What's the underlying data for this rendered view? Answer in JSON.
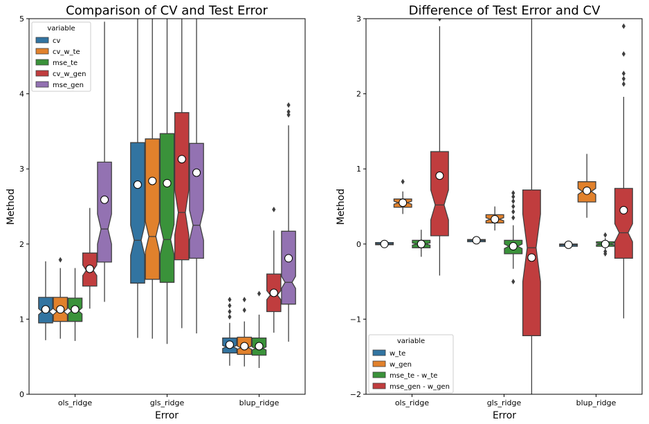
{
  "chart_data": [
    {
      "type": "box",
      "title": "Comparison of CV and Test Error",
      "xlabel": "Error",
      "ylabel": "Method",
      "ylim": [
        0,
        5
      ],
      "yticks": [
        0,
        1,
        2,
        3,
        4,
        5
      ],
      "categories": [
        "ols_ridge",
        "gls_ridge",
        "blup_ridge"
      ],
      "legend": {
        "title": "variable",
        "position": "upper-left"
      },
      "notched": true,
      "series": [
        {
          "name": "cv",
          "color": "#3274a1",
          "boxes": [
            {
              "q1": 0.95,
              "median": 1.1,
              "q3": 1.29,
              "wlo": 0.72,
              "whi": 1.77,
              "notch_lo": 1.06,
              "notch_hi": 1.14,
              "mean": 1.13,
              "outliers": []
            },
            {
              "q1": 1.48,
              "median": 2.05,
              "q3": 3.35,
              "wlo": 0.75,
              "whi": 5.0,
              "notch_lo": 1.85,
              "notch_hi": 2.25,
              "mean": 2.79,
              "outliers": []
            },
            {
              "q1": 0.55,
              "median": 0.63,
              "q3": 0.75,
              "wlo": 0.38,
              "whi": 0.95,
              "notch_lo": 0.61,
              "notch_hi": 0.65,
              "mean": 0.66,
              "outliers": [
                1.03,
                1.1,
                1.18,
                1.26
              ]
            }
          ]
        },
        {
          "name": "cv_w_te",
          "color": "#e1812c",
          "boxes": [
            {
              "q1": 0.97,
              "median": 1.1,
              "q3": 1.29,
              "wlo": 0.74,
              "whi": 1.68,
              "notch_lo": 1.06,
              "notch_hi": 1.14,
              "mean": 1.13,
              "outliers": [
                1.79
              ]
            },
            {
              "q1": 1.53,
              "median": 2.1,
              "q3": 3.4,
              "wlo": 0.74,
              "whi": 5.0,
              "notch_lo": 1.9,
              "notch_hi": 2.3,
              "mean": 2.84,
              "outliers": []
            },
            {
              "q1": 0.53,
              "median": 0.62,
              "q3": 0.76,
              "wlo": 0.37,
              "whi": 0.97,
              "notch_lo": 0.6,
              "notch_hi": 0.64,
              "mean": 0.64,
              "outliers": [
                1.12,
                1.26
              ]
            }
          ]
        },
        {
          "name": "mse_te",
          "color": "#3a923a",
          "boxes": [
            {
              "q1": 0.97,
              "median": 1.11,
              "q3": 1.28,
              "wlo": 0.71,
              "whi": 1.68,
              "notch_lo": 1.07,
              "notch_hi": 1.15,
              "mean": 1.13,
              "outliers": []
            },
            {
              "q1": 1.49,
              "median": 2.06,
              "q3": 3.47,
              "wlo": 0.67,
              "whi": 5.0,
              "notch_lo": 1.86,
              "notch_hi": 2.26,
              "mean": 2.81,
              "outliers": []
            },
            {
              "q1": 0.52,
              "median": 0.61,
              "q3": 0.75,
              "wlo": 0.35,
              "whi": 1.06,
              "notch_lo": 0.59,
              "notch_hi": 0.63,
              "mean": 0.64,
              "outliers": [
                1.34
              ]
            }
          ]
        },
        {
          "name": "cv_w_gen",
          "color": "#c03d3e",
          "boxes": [
            {
              "q1": 1.44,
              "median": 1.65,
              "q3": 1.88,
              "wlo": 1.14,
              "whi": 2.48,
              "notch_lo": 1.58,
              "notch_hi": 1.72,
              "mean": 1.67,
              "outliers": []
            },
            {
              "q1": 1.79,
              "median": 2.42,
              "q3": 3.75,
              "wlo": 0.88,
              "whi": 5.0,
              "notch_lo": 2.12,
              "notch_hi": 2.72,
              "mean": 3.13,
              "outliers": []
            },
            {
              "q1": 1.1,
              "median": 1.32,
              "q3": 1.6,
              "wlo": 0.82,
              "whi": 2.18,
              "notch_lo": 1.26,
              "notch_hi": 1.38,
              "mean": 1.35,
              "outliers": [
                2.46
              ]
            }
          ]
        },
        {
          "name": "mse_gen",
          "color": "#9372b2",
          "boxes": [
            {
              "q1": 1.76,
              "median": 2.2,
              "q3": 3.09,
              "wlo": 1.23,
              "whi": 4.96,
              "notch_lo": 2.0,
              "notch_hi": 2.4,
              "mean": 2.59,
              "outliers": []
            },
            {
              "q1": 1.81,
              "median": 2.25,
              "q3": 3.34,
              "wlo": 0.81,
              "whi": 5.0,
              "notch_lo": 2.05,
              "notch_hi": 2.45,
              "mean": 2.95,
              "outliers": []
            },
            {
              "q1": 1.2,
              "median": 1.49,
              "q3": 2.17,
              "wlo": 0.7,
              "whi": 3.58,
              "notch_lo": 1.41,
              "notch_hi": 1.57,
              "mean": 1.81,
              "outliers": [
                3.72,
                3.76,
                3.85
              ]
            }
          ]
        }
      ]
    },
    {
      "type": "box",
      "title": "Difference of Test Error and CV",
      "xlabel": "Error",
      "ylabel": "Method",
      "ylim": [
        -2,
        3
      ],
      "yticks": [
        -2,
        -1,
        0,
        1,
        2,
        3
      ],
      "categories": [
        "ols_ridge",
        "gls_ridge",
        "blup_ridge"
      ],
      "legend": {
        "title": "variable",
        "position": "lower-left"
      },
      "notched": true,
      "series": [
        {
          "name": "w_te",
          "color": "#3274a1",
          "boxes": [
            {
              "q1": -0.01,
              "median": 0.0,
              "q3": 0.02,
              "wlo": -0.03,
              "whi": 0.03,
              "notch_lo": -0.005,
              "notch_hi": 0.005,
              "mean": 0.0,
              "outliers": []
            },
            {
              "q1": 0.03,
              "median": 0.05,
              "q3": 0.06,
              "wlo": 0.02,
              "whi": 0.08,
              "notch_lo": 0.045,
              "notch_hi": 0.055,
              "mean": 0.05,
              "outliers": []
            },
            {
              "q1": -0.03,
              "median": -0.01,
              "q3": 0.0,
              "wlo": -0.06,
              "whi": 0.02,
              "notch_lo": -0.015,
              "notch_hi": -0.005,
              "mean": -0.01,
              "outliers": []
            }
          ]
        },
        {
          "name": "w_gen",
          "color": "#e1812c",
          "boxes": [
            {
              "q1": 0.49,
              "median": 0.55,
              "q3": 0.6,
              "wlo": 0.4,
              "whi": 0.7,
              "notch_lo": 0.53,
              "notch_hi": 0.57,
              "mean": 0.55,
              "outliers": [
                0.83
              ]
            },
            {
              "q1": 0.28,
              "median": 0.33,
              "q3": 0.39,
              "wlo": 0.18,
              "whi": 0.5,
              "notch_lo": 0.31,
              "notch_hi": 0.35,
              "mean": 0.33,
              "outliers": []
            },
            {
              "q1": 0.56,
              "median": 0.7,
              "q3": 0.83,
              "wlo": 0.35,
              "whi": 1.2,
              "notch_lo": 0.66,
              "notch_hi": 0.74,
              "mean": 0.71,
              "outliers": []
            }
          ]
        },
        {
          "name": "mse_te - w_te",
          "color": "#3a923a",
          "boxes": [
            {
              "q1": -0.05,
              "median": 0.0,
              "q3": 0.05,
              "wlo": -0.17,
              "whi": 0.19,
              "notch_lo": -0.015,
              "notch_hi": 0.015,
              "mean": 0.0,
              "outliers": []
            },
            {
              "q1": -0.13,
              "median": -0.03,
              "q3": 0.05,
              "wlo": -0.33,
              "whi": 0.25,
              "notch_lo": -0.06,
              "notch_hi": 0.0,
              "mean": -0.03,
              "outliers": [
                -0.5,
                0.35,
                0.43,
                0.5,
                0.57,
                0.63,
                0.68
              ]
            },
            {
              "q1": -0.03,
              "median": 0.0,
              "q3": 0.03,
              "wlo": -0.08,
              "whi": 0.08,
              "notch_lo": -0.01,
              "notch_hi": 0.01,
              "mean": 0.0,
              "outliers": [
                -0.13,
                -0.1,
                0.12
              ]
            }
          ]
        },
        {
          "name": "mse_gen - w_gen",
          "color": "#c03d3e",
          "boxes": [
            {
              "q1": 0.11,
              "median": 0.52,
              "q3": 1.23,
              "wlo": -0.42,
              "whi": 2.9,
              "notch_lo": 0.32,
              "notch_hi": 0.72,
              "mean": 0.91,
              "outliers": [
                3.0
              ]
            },
            {
              "q1": -1.22,
              "median": -0.05,
              "q3": 0.72,
              "wlo": -2.0,
              "whi": 3.0,
              "notch_lo": -0.5,
              "notch_hi": 0.4,
              "mean": -0.18,
              "outliers": []
            },
            {
              "q1": -0.19,
              "median": 0.15,
              "q3": 0.74,
              "wlo": -0.99,
              "whi": 1.96,
              "notch_lo": 0.03,
              "notch_hi": 0.27,
              "mean": 0.45,
              "outliers": [
                2.13,
                2.2,
                2.27,
                2.53,
                2.9
              ]
            }
          ]
        }
      ]
    }
  ]
}
